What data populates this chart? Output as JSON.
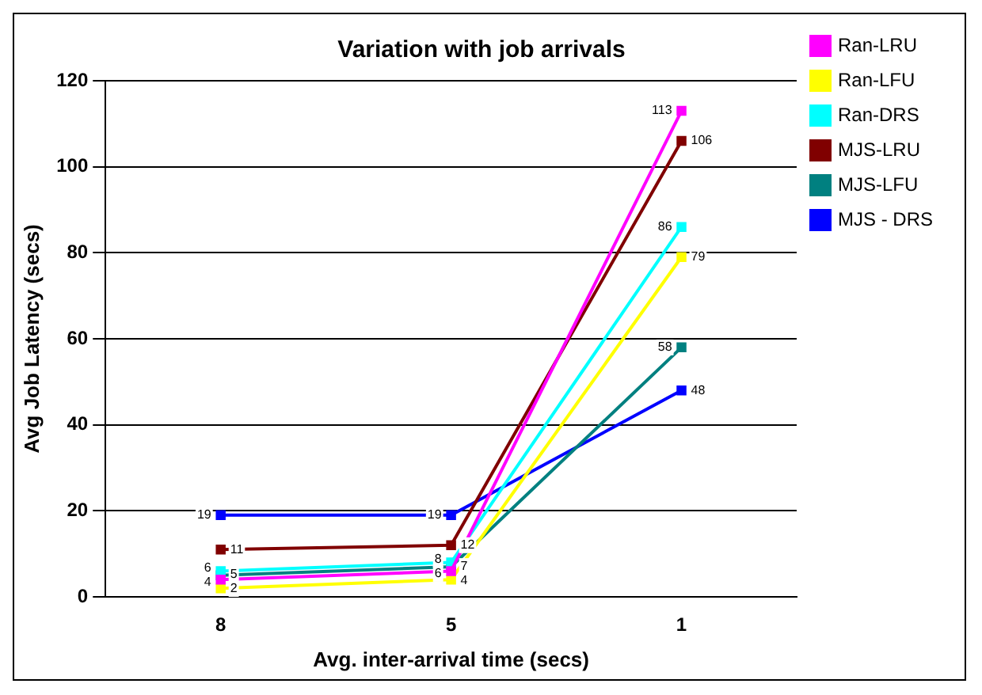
{
  "chart_data": {
    "type": "line",
    "title": "Variation with job arrivals",
    "xlabel": "Avg. inter-arrival time (secs)",
    "ylabel": "Avg Job Latency (secs)",
    "categories": [
      "8",
      "5",
      "1"
    ],
    "series": [
      {
        "name": "Ran-LRU",
        "color": "#ff00ff",
        "values": [
          4,
          6,
          113
        ]
      },
      {
        "name": "Ran-LFU",
        "color": "#ffff00",
        "values": [
          2,
          4,
          79
        ]
      },
      {
        "name": "Ran-DRS",
        "color": "#00ffff",
        "values": [
          6,
          8,
          86
        ]
      },
      {
        "name": "MJS-LRU",
        "color": "#800000",
        "values": [
          11,
          12,
          106
        ]
      },
      {
        "name": "MJS-LFU",
        "color": "#008080",
        "values": [
          5,
          7,
          58
        ]
      },
      {
        "name": "MJS - DRS",
        "color": "#0000ff",
        "values": [
          19,
          19,
          48
        ]
      }
    ],
    "ylim": [
      0,
      120
    ],
    "yticks": [
      0,
      20,
      40,
      60,
      80,
      100,
      120
    ],
    "grid": "y",
    "legend": "top right",
    "marker": "square",
    "data_labels": true
  }
}
